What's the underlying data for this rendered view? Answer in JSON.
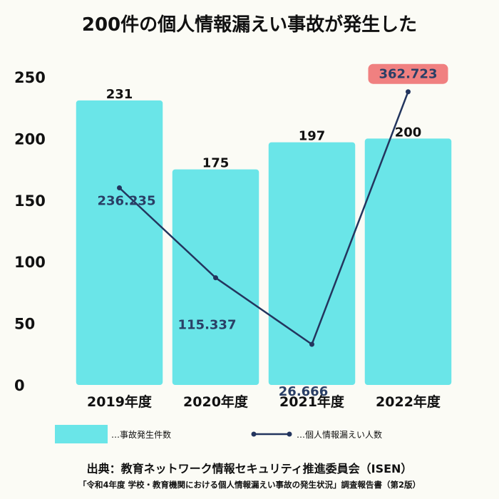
{
  "title": "200件の個人情報漏えい事故が発生した",
  "chart_data": {
    "type": "bar+line",
    "title": "200件の個人情報漏えい事故が発生した",
    "categories": [
      "2019年度",
      "2020年度",
      "2021年度",
      "2022年度"
    ],
    "ylim": [
      0,
      250
    ],
    "yticks": [
      0,
      50,
      100,
      150,
      200,
      250
    ],
    "series": [
      {
        "name": "事故発生件数",
        "type": "bar",
        "values": [
          231,
          175,
          197,
          200
        ],
        "labels": [
          "231",
          "175",
          "197",
          "200"
        ]
      },
      {
        "name": "個人情報漏えい人数",
        "type": "line",
        "values": [
          236235,
          115337,
          26666,
          362723
        ],
        "labels": [
          "236.235",
          "115.337",
          "26.666",
          "362.723"
        ],
        "plot_values": [
          160,
          87,
          33,
          238
        ],
        "highlight_index": 3
      }
    ]
  },
  "colors": {
    "bar": "#6ae5e8",
    "line": "#23355e",
    "highlight_bg": "#f08080",
    "axis_text": "#111111",
    "line_label": "#2a3f66"
  },
  "legend": {
    "bar_label": "…事故発生件数",
    "line_label": "…個人情報漏えい人数"
  },
  "source": {
    "line1": "出典：教育ネットワーク情報セキュリティ推進委員会（ISEN）",
    "line2": "「令和4年度 学校・教育機関における個人情報漏えい事故の発生状況」調査報告書（第2版）"
  }
}
